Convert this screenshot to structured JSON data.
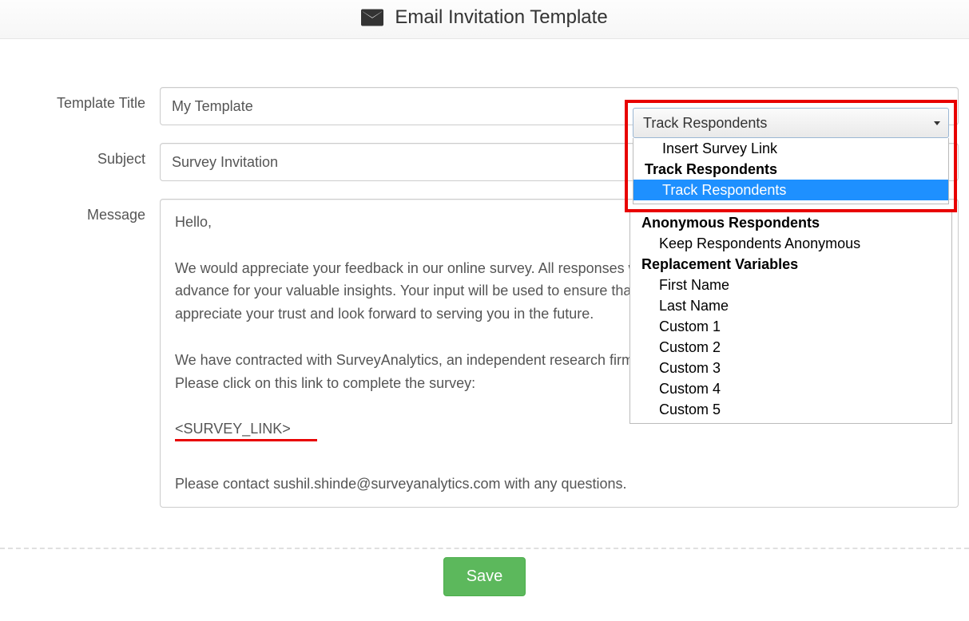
{
  "header": {
    "title": "Email Invitation Template",
    "icon": "envelope-icon"
  },
  "form": {
    "template_title_label": "Template Title",
    "template_title_value": "My Template",
    "subject_label": "Subject",
    "subject_value": "Survey Invitation",
    "message_label": "Message",
    "message": {
      "greeting": "Hello,",
      "p1": "We would appreciate your feedback in our online survey.  All responses will remain confidential and secure.  Thank you in advance for your valuable insights.  Your input will be used to ensure that we continue to meet your needs. We appreciate your trust and look forward to serving you in the future.",
      "p2": "We have contracted with SurveyAnalytics, an independent research firm, to field your confidential survey responses.  Please click on this link to complete the survey:",
      "link_tag": "<SURVEY_LINK>",
      "p3": "Please contact sushil.shinde@surveyanalytics.com with any questions."
    }
  },
  "dropdown": {
    "selected_label": "Track Respondents",
    "options": [
      {
        "label": "Insert Survey Link",
        "type": "item"
      },
      {
        "label": "Track Respondents",
        "type": "group"
      },
      {
        "label": "Track Respondents",
        "type": "item",
        "selected": true
      },
      {
        "label": "Anonymous Respondents",
        "type": "group"
      },
      {
        "label": "Keep Respondents Anonymous",
        "type": "item"
      },
      {
        "label": "Replacement Variables",
        "type": "group"
      },
      {
        "label": "First Name",
        "type": "item"
      },
      {
        "label": "Last Name",
        "type": "item"
      },
      {
        "label": "Custom 1",
        "type": "item"
      },
      {
        "label": "Custom 2",
        "type": "item"
      },
      {
        "label": "Custom 3",
        "type": "item"
      },
      {
        "label": "Custom 4",
        "type": "item"
      },
      {
        "label": "Custom 5",
        "type": "item"
      }
    ]
  },
  "actions": {
    "save_label": "Save"
  },
  "highlight": {
    "red_box_color": "#e80202",
    "red_underline_color": "#e80202",
    "selected_bg": "#1e90ff"
  }
}
